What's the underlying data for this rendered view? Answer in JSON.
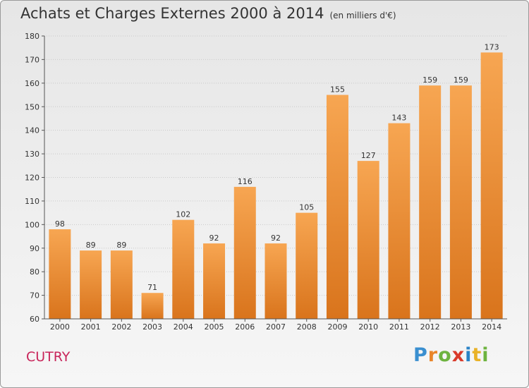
{
  "chart_data": {
    "type": "bar",
    "title": "Achats et Charges Externes 2000 à 2014",
    "subtitle": "(en milliers d'€)",
    "categories": [
      "2000",
      "2001",
      "2002",
      "2003",
      "2004",
      "2005",
      "2006",
      "2007",
      "2008",
      "2009",
      "2010",
      "2011",
      "2012",
      "2013",
      "2014"
    ],
    "values": [
      98,
      89,
      89,
      71,
      102,
      92,
      116,
      92,
      105,
      155,
      127,
      143,
      159,
      159,
      173
    ],
    "ylim": [
      60,
      180
    ],
    "yticks": [
      60,
      70,
      80,
      90,
      100,
      110,
      120,
      130,
      140,
      150,
      160,
      170,
      180
    ],
    "xlabel": "",
    "ylabel": "",
    "grid": true,
    "bar_color": "#f3923c"
  },
  "commune": "CUTRY",
  "logo": {
    "letters": [
      "P",
      "r",
      "o",
      "x",
      "i",
      "t",
      "i"
    ],
    "colors": [
      "#3a8fd0",
      "#e9852a",
      "#6db33f",
      "#d93a2a",
      "#2b83c6",
      "#e9b227",
      "#6db33f"
    ]
  }
}
